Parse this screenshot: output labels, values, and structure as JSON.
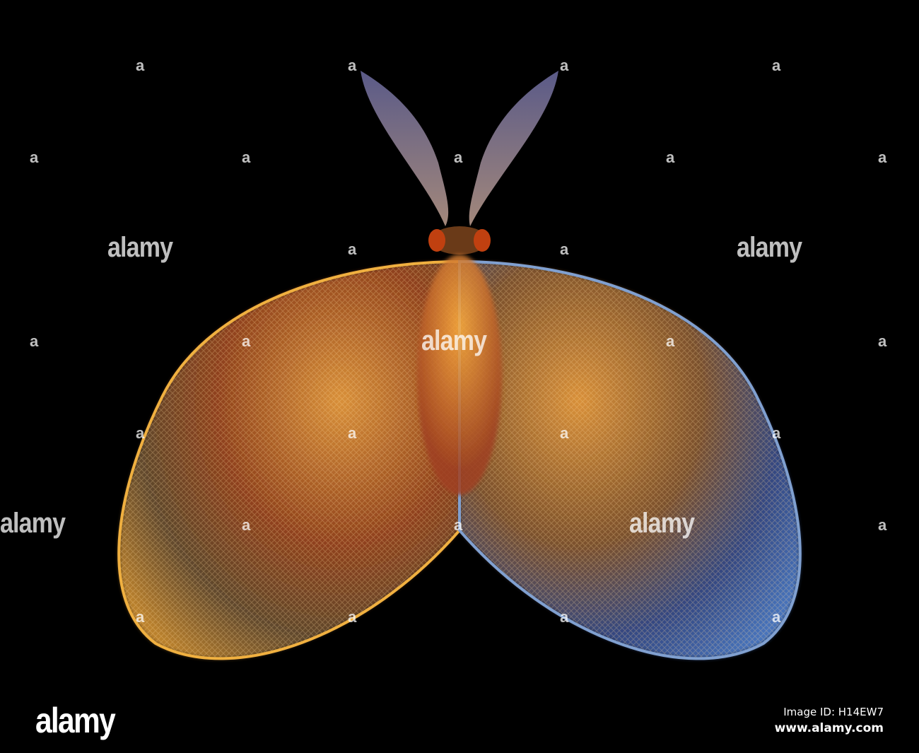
{
  "image": {
    "subject": "fractal moth",
    "colors": {
      "background": "#000000",
      "wing_orange": "#e8902a",
      "wing_blue": "#3a6ad0",
      "antenna": "#8a8ac8"
    }
  },
  "watermark": {
    "logo_text": "alamy",
    "mark_text": "a"
  },
  "footer": {
    "logo": "alamy",
    "image_id": "Image ID: H14EW7",
    "site": "www.alamy.com"
  }
}
